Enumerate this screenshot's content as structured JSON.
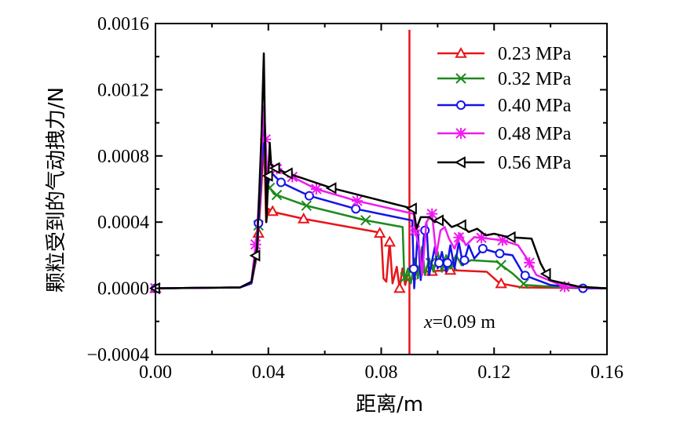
{
  "chart_data": {
    "type": "line",
    "xlabel": "距离/m",
    "ylabel": "颗粒受到的气动拽力/N",
    "xlim": [
      0,
      0.16
    ],
    "ylim": [
      -0.0004,
      0.0016
    ],
    "xticks": [
      "0.00",
      "0.04",
      "0.08",
      "0.12",
      "0.16"
    ],
    "yticks": [
      "−0.0004",
      "0.0000",
      "0.0004",
      "0.0008",
      "0.0012",
      "0.0016"
    ],
    "legend_position": "top-right",
    "annotation": {
      "text_italic": "x",
      "text": "=0.09 m",
      "vline_x": 0.09,
      "color": "#e8141a"
    },
    "series": [
      {
        "name": "0.23 MPa",
        "color": "#e8141a",
        "marker": "triangle-up",
        "points": [
          [
            0,
            0
          ],
          [
            0.03,
            5e-06
          ],
          [
            0.034,
            3e-05
          ],
          [
            0.036,
            0.0002
          ],
          [
            0.0375,
            0.0006
          ],
          [
            0.0385,
            0.0009
          ],
          [
            0.0392,
            0.0004
          ],
          [
            0.04,
            0.00048
          ],
          [
            0.042,
            0.00046
          ],
          [
            0.0525,
            0.00042
          ],
          [
            0.0785,
            0.00034
          ],
          [
            0.08,
            0.00033
          ],
          [
            0.0808,
            6e-05
          ],
          [
            0.0818,
            4e-05
          ],
          [
            0.083,
            0.00028
          ],
          [
            0.084,
            3e-05
          ],
          [
            0.0855,
            0.00013
          ],
          [
            0.0865,
            0.0
          ],
          [
            0.0875,
            0.00012
          ],
          [
            0.0885,
            2e-05
          ],
          [
            0.0895,
            8e-05
          ],
          [
            0.091,
            8e-05
          ],
          [
            0.095,
            0.0001
          ],
          [
            0.1043,
            0.00011
          ],
          [
            0.1174,
            0.0001
          ],
          [
            0.122,
            3e-05
          ],
          [
            0.13,
            5e-06
          ],
          [
            0.16,
            0
          ]
        ],
        "markers_x": [
          0,
          0.0365,
          0.0415,
          0.0525,
          0.0795,
          0.083,
          0.0865,
          0.0905,
          0.098,
          0.1045,
          0.1225
        ]
      },
      {
        "name": "0.32 MPa",
        "color": "#1e8a1e",
        "marker": "x",
        "points": [
          [
            0,
            0
          ],
          [
            0.03,
            5e-06
          ],
          [
            0.034,
            3e-05
          ],
          [
            0.036,
            0.00022
          ],
          [
            0.0375,
            0.0007
          ],
          [
            0.0385,
            0.001
          ],
          [
            0.0393,
            0.0005
          ],
          [
            0.04,
            0.00062
          ],
          [
            0.042,
            0.00057
          ],
          [
            0.0534,
            0.0005
          ],
          [
            0.0748,
            0.00041
          ],
          [
            0.0876,
            0.00037
          ],
          [
            0.0882,
            5e-05
          ],
          [
            0.0895,
            0.00012
          ],
          [
            0.0905,
            3e-05
          ],
          [
            0.092,
            0.00018
          ],
          [
            0.093,
            6e-05
          ],
          [
            0.0945,
            0.00025
          ],
          [
            0.0955,
            8e-05
          ],
          [
            0.097,
            0.00018
          ],
          [
            0.0985,
            0.0001
          ],
          [
            0.1,
            0.00022
          ],
          [
            0.1015,
            0.0001
          ],
          [
            0.103,
            0.0002
          ],
          [
            0.1045,
            0.00012
          ],
          [
            0.1065,
            0.0002
          ],
          [
            0.1085,
            0.00014
          ],
          [
            0.1118,
            0.00017
          ],
          [
            0.121,
            0.00016
          ],
          [
            0.1265,
            9e-05
          ],
          [
            0.131,
            2e-05
          ],
          [
            0.145,
            5e-06
          ],
          [
            0.16,
            0
          ]
        ],
        "markers_x": [
          0,
          0.0365,
          0.0405,
          0.043,
          0.0535,
          0.0745,
          0.0885,
          0.0935,
          0.0975,
          0.105,
          0.1225,
          0.1305
        ]
      },
      {
        "name": "0.40 MPa",
        "color": "#1414e6",
        "marker": "circle",
        "points": [
          [
            0,
            0
          ],
          [
            0.03,
            5e-06
          ],
          [
            0.034,
            3e-05
          ],
          [
            0.036,
            0.00024
          ],
          [
            0.0375,
            0.0007
          ],
          [
            0.0385,
            0.00095
          ],
          [
            0.0394,
            0.0006
          ],
          [
            0.041,
            0.0007
          ],
          [
            0.0445,
            0.00064
          ],
          [
            0.0543,
            0.00056
          ],
          [
            0.071,
            0.00048
          ],
          [
            0.091,
            0.00041
          ],
          [
            0.0917,
            0.0
          ],
          [
            0.093,
            0.00035
          ],
          [
            0.094,
            5e-05
          ],
          [
            0.095,
            0.0003
          ],
          [
            0.096,
            0.0004
          ],
          [
            0.097,
            8e-05
          ],
          [
            0.099,
            0.00025
          ],
          [
            0.1,
            0.00012
          ],
          [
            0.1015,
            0.00022
          ],
          [
            0.103,
            0.0001
          ],
          [
            0.1045,
            0.00026
          ],
          [
            0.106,
            0.00012
          ],
          [
            0.1075,
            0.00028
          ],
          [
            0.109,
            0.00014
          ],
          [
            0.111,
            0.00026
          ],
          [
            0.113,
            0.00018
          ],
          [
            0.116,
            0.00024
          ],
          [
            0.122,
            0.00021
          ],
          [
            0.1265,
            0.0002
          ],
          [
            0.1306,
            8e-05
          ],
          [
            0.14,
            2e-05
          ],
          [
            0.1515,
            0.0
          ],
          [
            0.16,
            0
          ]
        ],
        "markers_x": [
          0,
          0.0365,
          0.0445,
          0.0545,
          0.071,
          0.0915,
          0.0955,
          0.1005,
          0.1035,
          0.1095,
          0.116,
          0.122,
          0.131,
          0.1515
        ]
      },
      {
        "name": "0.48 MPa",
        "color": "#f01af0",
        "marker": "asterisk",
        "points": [
          [
            0,
            0
          ],
          [
            0.03,
            5e-06
          ],
          [
            0.034,
            4e-05
          ],
          [
            0.036,
            0.00034
          ],
          [
            0.0375,
            0.0008
          ],
          [
            0.0385,
            0.0011
          ],
          [
            0.0395,
            0.0007
          ],
          [
            0.0405,
            0.00075
          ],
          [
            0.0431,
            0.00072
          ],
          [
            0.057,
            0.0006
          ],
          [
            0.071,
            0.00053
          ],
          [
            0.0915,
            0.00045
          ],
          [
            0.092,
            0.00035
          ],
          [
            0.0935,
            0.00025
          ],
          [
            0.0945,
            8e-05
          ],
          [
            0.096,
            0.0004
          ],
          [
            0.098,
            0.00045
          ],
          [
            0.0995,
            0.0002
          ],
          [
            0.101,
            0.00035
          ],
          [
            0.1025,
            0.00037
          ],
          [
            0.104,
            0.0003
          ],
          [
            0.106,
            0.00024
          ],
          [
            0.108,
            0.00033
          ],
          [
            0.11,
            0.00026
          ],
          [
            0.113,
            0.00031
          ],
          [
            0.118,
            0.0003
          ],
          [
            0.123,
            0.00029
          ],
          [
            0.1285,
            0.00026
          ],
          [
            0.132,
            0.00017
          ],
          [
            0.135,
            8e-05
          ],
          [
            0.145,
            1e-05
          ],
          [
            0.16,
            0
          ]
        ],
        "markers_x": [
          0,
          0.0355,
          0.039,
          0.043,
          0.0485,
          0.057,
          0.0715,
          0.092,
          0.098,
          0.1075,
          0.1155,
          0.123,
          0.1325,
          0.145
        ]
      },
      {
        "name": "0.56 MPa",
        "color": "#000000",
        "marker": "triangle-left",
        "points": [
          [
            0,
            0
          ],
          [
            0.03,
            5e-06
          ],
          [
            0.034,
            4e-05
          ],
          [
            0.036,
            0.00025
          ],
          [
            0.0375,
            0.0009
          ],
          [
            0.0384,
            0.00142
          ],
          [
            0.0393,
            0.0004
          ],
          [
            0.0405,
            0.00088
          ],
          [
            0.041,
            0.00075
          ],
          [
            0.042,
            0.00073
          ],
          [
            0.046,
            0.0007
          ],
          [
            0.0626,
            0.000605
          ],
          [
            0.0915,
            0.00048
          ],
          [
            0.0925,
            0.00036
          ],
          [
            0.094,
            0.00043
          ],
          [
            0.097,
            0.00043
          ],
          [
            0.099,
            0.0004
          ],
          [
            0.102,
            0.00042
          ],
          [
            0.105,
            0.00037
          ],
          [
            0.108,
            0.00039
          ],
          [
            0.111,
            0.00034
          ],
          [
            0.114,
            0.00036
          ],
          [
            0.117,
            0.00032
          ],
          [
            0.12,
            0.00033
          ],
          [
            0.1249,
            0.00031
          ],
          [
            0.1333,
            0.0003
          ],
          [
            0.1365,
            0.00015
          ],
          [
            0.1397,
            5e-05
          ],
          [
            0.15,
            1e-05
          ],
          [
            0.16,
            0
          ]
        ],
        "markers_x": [
          0,
          0.0355,
          0.04,
          0.0425,
          0.047,
          0.0625,
          0.091,
          0.1005,
          0.1085,
          0.126,
          0.1385
        ]
      }
    ]
  }
}
